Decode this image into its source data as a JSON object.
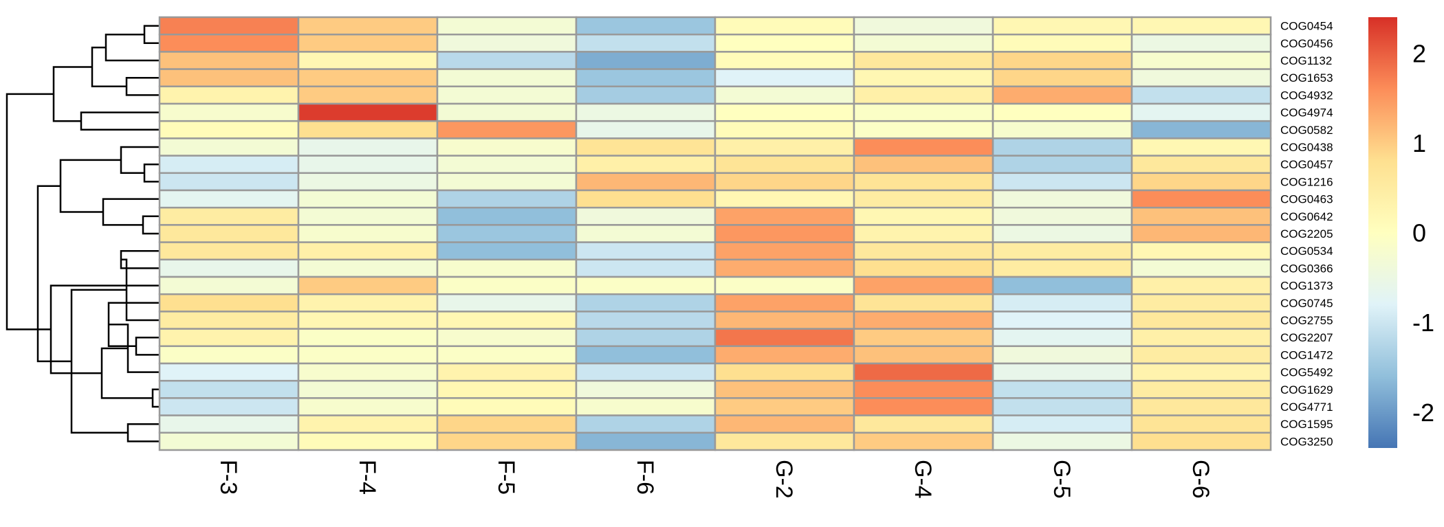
{
  "chart_data": {
    "type": "heatmap",
    "title": "",
    "xlabel": "",
    "ylabel": "",
    "columns": [
      "F-3",
      "F-4",
      "F-5",
      "F-6",
      "G-2",
      "G-4",
      "G-5",
      "G-6"
    ],
    "rows": [
      "COG0454",
      "COG0456",
      "COG1132",
      "COG1653",
      "COG4932",
      "COG4974",
      "COG0582",
      "COG0438",
      "COG0457",
      "COG1216",
      "COG0463",
      "COG0642",
      "COG2205",
      "COG0534",
      "COG0366",
      "COG1373",
      "COG0745",
      "COG2755",
      "COG2207",
      "COG1472",
      "COG5492",
      "COG1629",
      "COG4771",
      "COG1595",
      "COG3250"
    ],
    "values": [
      [
        1.7,
        1.0,
        -0.3,
        -1.5,
        0.1,
        -0.4,
        0.2,
        0.2
      ],
      [
        1.6,
        1.0,
        -0.4,
        -1.1,
        0.0,
        -0.3,
        0.1,
        -0.5
      ],
      [
        1.1,
        0.2,
        -1.2,
        -1.8,
        0.1,
        0.6,
        0.9,
        -0.2
      ],
      [
        1.1,
        1.0,
        -0.3,
        -1.5,
        -0.8,
        0.2,
        0.9,
        -0.4
      ],
      [
        0.3,
        1.0,
        -0.3,
        -1.4,
        -0.3,
        0.4,
        1.3,
        -1.1
      ],
      [
        -0.2,
        2.3,
        -0.3,
        -0.5,
        0.0,
        -0.1,
        0.0,
        -0.7
      ],
      [
        0.1,
        0.8,
        1.5,
        -0.6,
        0.1,
        -0.1,
        -0.2,
        -1.7
      ],
      [
        -0.3,
        -0.6,
        -0.2,
        0.7,
        0.4,
        1.6,
        -1.3,
        0.2
      ],
      [
        -0.9,
        -0.6,
        -0.3,
        0.4,
        0.7,
        1.1,
        -1.3,
        0.6
      ],
      [
        -1.0,
        -0.5,
        -0.3,
        1.2,
        0.9,
        0.7,
        -1.0,
        0.9
      ],
      [
        -0.7,
        -0.3,
        -1.3,
        0.8,
        0.2,
        0.5,
        -0.4,
        1.6
      ],
      [
        0.5,
        -0.3,
        -1.6,
        -0.4,
        1.4,
        0.2,
        -0.4,
        1.1
      ],
      [
        0.6,
        -0.2,
        -1.5,
        -0.3,
        1.5,
        0.3,
        -0.5,
        1.2
      ],
      [
        0.6,
        0.4,
        -1.6,
        -1.0,
        1.4,
        0.6,
        0.5,
        0.2
      ],
      [
        -0.6,
        -0.3,
        -0.2,
        -1.0,
        1.3,
        0.8,
        0.5,
        -0.3
      ],
      [
        -0.3,
        1.0,
        -0.1,
        -0.1,
        -0.1,
        1.4,
        -1.6,
        0.4
      ],
      [
        0.8,
        0.3,
        -0.6,
        -1.3,
        1.4,
        0.7,
        -0.9,
        0.5
      ],
      [
        0.5,
        0.2,
        0.2,
        -1.2,
        1.2,
        1.3,
        -0.8,
        0.6
      ],
      [
        0.3,
        -0.1,
        -0.2,
        -1.3,
        1.8,
        1.0,
        -0.7,
        0.4
      ],
      [
        -0.1,
        -0.1,
        -0.1,
        -1.6,
        1.3,
        1.1,
        -0.4,
        0.5
      ],
      [
        -0.8,
        -0.2,
        0.3,
        -1.0,
        0.8,
        1.9,
        -0.6,
        0.3
      ],
      [
        -1.1,
        -0.3,
        0.2,
        -0.4,
        1.1,
        1.6,
        -1.1,
        0.5
      ],
      [
        -1.0,
        -0.2,
        0.1,
        -0.2,
        1.0,
        1.6,
        -1.1,
        0.6
      ],
      [
        -0.6,
        0.3,
        0.9,
        -1.3,
        1.2,
        0.6,
        -0.9,
        0.7
      ],
      [
        -0.3,
        0.1,
        0.9,
        -1.7,
        0.6,
        1.0,
        -0.5,
        0.8
      ]
    ],
    "color_scale": {
      "min": -2.4,
      "max": 2.4,
      "stops": [
        "#4575b4",
        "#91bfdb",
        "#e0f3f8",
        "#ffffbf",
        "#fee090",
        "#fc8d59",
        "#d73027"
      ],
      "ticks": [
        2,
        1,
        0,
        -1,
        -2
      ],
      "tick_labels": [
        "2",
        "1",
        "0",
        "-1",
        "-2"
      ]
    },
    "grid": true,
    "legend_position": "right",
    "dendrogram": "rows",
    "cell_border_color": "#999999"
  }
}
